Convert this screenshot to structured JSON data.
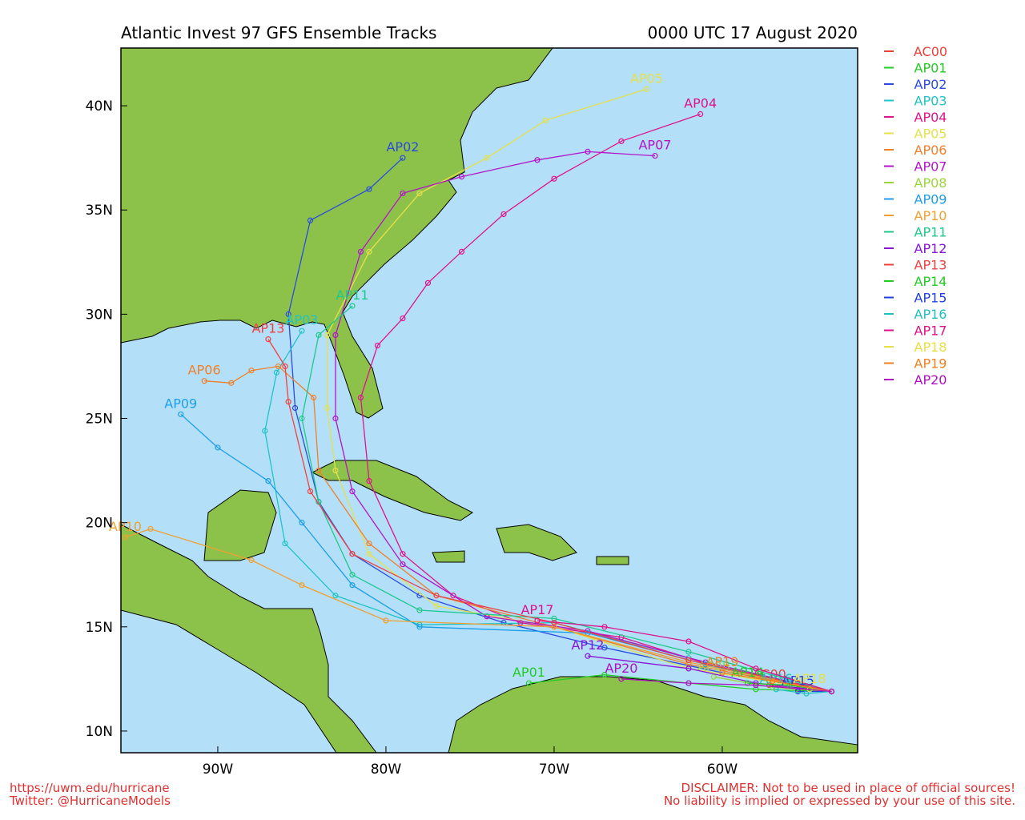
{
  "chart_data": {
    "type": "line",
    "title": "Atlantic Invest 97 GFS Ensemble Tracks",
    "subtitle": "0000 UTC 17 August 2020",
    "footer_left": [
      "https://uwm.edu/hurricane",
      "Twitter: @HurricaneModels"
    ],
    "footer_right": [
      "DISCLAIMER: Not to be used in place of official sources!",
      "No liability is implied or expressed by your use of this site."
    ],
    "xlim": [
      -95.76,
      -51.95
    ],
    "ylim": [
      8.96,
      42.77
    ],
    "xticks": [
      {
        "value": -90,
        "label": "90W"
      },
      {
        "value": -80,
        "label": "80W"
      },
      {
        "value": -70,
        "label": "70W"
      },
      {
        "value": -60,
        "label": "60W"
      }
    ],
    "yticks": [
      {
        "value": 10,
        "label": "10N"
      },
      {
        "value": 15,
        "label": "15N"
      },
      {
        "value": 20,
        "label": "20N"
      },
      {
        "value": 25,
        "label": "25N"
      },
      {
        "value": 30,
        "label": "30N"
      },
      {
        "value": 35,
        "label": "35N"
      },
      {
        "value": 40,
        "label": "40N"
      }
    ],
    "series": [
      {
        "name": "AC00",
        "color": "#e8413a",
        "x": [
          -53.5,
          -55.5,
          -57.2
        ],
        "values": [
          11.9,
          12.0,
          12.2
        ]
      },
      {
        "name": "AP01",
        "color": "#22cc22",
        "x": [
          -53.5,
          -58,
          -62,
          -67,
          -71.5
        ],
        "values": [
          11.9,
          12.0,
          12.3,
          12.7,
          12.3
        ]
      },
      {
        "name": "AP02",
        "color": "#2a4be0",
        "x": [
          -53.5,
          -60,
          -67,
          -73,
          -78,
          -82,
          -84,
          -85.4,
          -85.8,
          -84.5,
          -81,
          -79
        ],
        "values": [
          11.9,
          12.8,
          14,
          15.2,
          16.5,
          18.5,
          21,
          25.5,
          30,
          34.5,
          36,
          37.5
        ]
      },
      {
        "name": "AP03",
        "color": "#1fc4c4",
        "x": [
          -53.5,
          -62,
          -70,
          -78,
          -83,
          -86,
          -87.2,
          -86.5,
          -85
        ],
        "values": [
          11.9,
          13.5,
          15.2,
          15.1,
          16.5,
          19,
          24.4,
          27.2,
          29.2
        ]
      },
      {
        "name": "AP04",
        "color": "#e0138a",
        "x": [
          -53.5,
          -60,
          -66,
          -72,
          -76,
          -79,
          -81,
          -81.5,
          -80.5,
          -79,
          -77.5,
          -75.5,
          -73,
          -70,
          -66,
          -61.3
        ],
        "values": [
          11.9,
          13,
          14.5,
          15.2,
          16.5,
          18.5,
          22,
          26,
          28.5,
          29.8,
          31.5,
          33,
          34.8,
          36.5,
          38.3,
          39.6
        ]
      },
      {
        "name": "AP05",
        "color": "#e6e04a",
        "x": [
          -53.5,
          -62,
          -70,
          -77,
          -81,
          -83,
          -83.5,
          -83.5,
          -81,
          -78,
          -74,
          -70.5,
          -64.5
        ],
        "values": [
          11.9,
          13,
          15,
          16,
          18.5,
          22.5,
          25.5,
          29,
          33,
          35.8,
          37.5,
          39.3,
          40.8
        ]
      },
      {
        "name": "AP06",
        "color": "#f07f2a",
        "x": [
          -53.5,
          -62,
          -70,
          -77,
          -81,
          -84,
          -84.3,
          -86.4,
          -88,
          -89.2,
          -90.8
        ],
        "values": [
          11.9,
          13.2,
          15,
          16.5,
          19,
          22.5,
          26,
          27.5,
          27.3,
          26.7,
          26.8
        ]
      },
      {
        "name": "AP07",
        "color": "#b414c8",
        "x": [
          -53.5,
          -61,
          -68,
          -74,
          -79,
          -82,
          -83,
          -83,
          -81.5,
          -79,
          -75.5,
          -71,
          -68,
          -64
        ],
        "values": [
          11.9,
          13.3,
          14.8,
          15.5,
          18,
          21.5,
          25,
          29,
          33,
          35.8,
          36.6,
          37.4,
          37.8,
          37.6
        ]
      },
      {
        "name": "AP08",
        "color": "#9ad63a",
        "x": [
          -53.5,
          -57,
          -60.5
        ],
        "values": [
          11.9,
          12.1,
          12.6
        ]
      },
      {
        "name": "AP09",
        "color": "#1c9ee8",
        "x": [
          -53.5,
          -61,
          -68,
          -78,
          -82,
          -85,
          -87,
          -90,
          -92.2
        ],
        "values": [
          11.9,
          13.2,
          14.7,
          15,
          17,
          20,
          22,
          23.6,
          25.2
        ]
      },
      {
        "name": "AP10",
        "color": "#f0a030",
        "x": [
          -53.5,
          -62,
          -70,
          -80,
          -85,
          -88,
          -94,
          -95.5
        ],
        "values": [
          11.9,
          13.3,
          15,
          15.3,
          17,
          18.2,
          19.7,
          19.3
        ]
      },
      {
        "name": "AP11",
        "color": "#1ec88a",
        "x": [
          -53.5,
          -62,
          -70,
          -78,
          -82,
          -84,
          -85,
          -84,
          -82
        ],
        "values": [
          11.9,
          13.8,
          15.4,
          15.8,
          17.5,
          21,
          25,
          29,
          30.4
        ]
      },
      {
        "name": "AP12",
        "color": "#8a14d4",
        "x": [
          -53.5,
          -58,
          -62,
          -68
        ],
        "values": [
          11.9,
          12.3,
          13,
          13.6
        ]
      },
      {
        "name": "AP13",
        "color": "#f04040",
        "x": [
          -53.5,
          -62,
          -70,
          -77,
          -82,
          -84.5,
          -85.8,
          -86,
          -87
        ],
        "values": [
          11.9,
          13.4,
          15.2,
          16.5,
          18.5,
          21.5,
          25.8,
          27.5,
          28.8
        ]
      },
      {
        "name": "AP14",
        "color": "#22cc22",
        "x": [
          -53.5,
          -56,
          -58.5
        ],
        "values": [
          11.9,
          12.2,
          12.3
        ]
      },
      {
        "name": "AP15",
        "color": "#2040e0",
        "x": [
          -53.5,
          -55.5
        ],
        "values": [
          11.9,
          11.9
        ]
      },
      {
        "name": "AP16",
        "color": "#20c0c0",
        "x": [
          -53.5,
          -55,
          -56.8
        ],
        "values": [
          11.9,
          11.8,
          12.0
        ]
      },
      {
        "name": "AP17",
        "color": "#e0108a",
        "x": [
          -53.5,
          -58,
          -62,
          -67,
          -71
        ],
        "values": [
          11.9,
          13,
          14.3,
          15,
          15.3
        ]
      },
      {
        "name": "AP18",
        "color": "#e8e040",
        "x": [
          -53.5,
          -54.8
        ],
        "values": [
          11.9,
          12.0
        ]
      },
      {
        "name": "AP19",
        "color": "#f08020",
        "x": [
          -53.5,
          -57,
          -60
        ],
        "values": [
          11.9,
          12.4,
          12.8
        ]
      },
      {
        "name": "AP20",
        "color": "#b010c0",
        "x": [
          -53.5,
          -58,
          -62,
          -66
        ],
        "values": [
          11.9,
          12.2,
          12.3,
          12.5
        ]
      }
    ]
  }
}
